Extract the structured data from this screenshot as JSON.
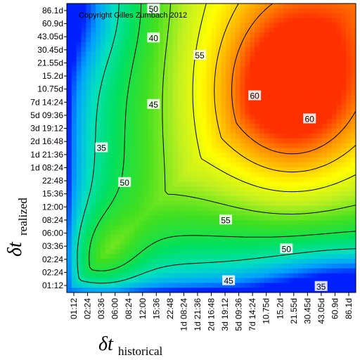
{
  "chart_data": {
    "type": "heatmap",
    "copyright": "Copyright Gilles Zumbach 2012",
    "xlabel": {
      "symbol": "δt",
      "subscript": "historical"
    },
    "ylabel": {
      "symbol": "δt",
      "subscript": "realized"
    },
    "x_ticks": [
      "01:12",
      "02:24",
      "03:36",
      "06:00",
      "08:24",
      "12:00",
      "15:36",
      "22:48",
      "1d 08:24",
      "1d 21:36",
      "2d 16:48",
      "3d 19:12",
      "5d 09:36",
      "7d 14:24",
      "10.75d",
      "15.2d",
      "21.55d",
      "30.45d",
      "43.05d",
      "60.9d",
      "86.1d"
    ],
    "y_ticks": [
      "01:12",
      "02:24",
      "02:24",
      "03:36",
      "06:00",
      "08:24",
      "12:00",
      "15:36",
      "22:48",
      "1d 08:24",
      "1d 21:36",
      "2d 16:48",
      "3d 19:12",
      "5d 09:36",
      "7d 14:24",
      "10.75d",
      "15.2d",
      "21.55d",
      "30.45d",
      "43.05d",
      "60.9d",
      "86.1d"
    ],
    "colorscale": [
      "#0020ff",
      "#00a0ff",
      "#00e0c0",
      "#00e060",
      "#40e020",
      "#c0f020",
      "#ffff00",
      "#ffc000",
      "#ff8000",
      "#ff3000"
    ],
    "value_range": [
      25,
      65
    ],
    "contour_labels": [
      {
        "text": "35",
        "x": 0.12,
        "y": 0.5
      },
      {
        "text": "35",
        "x": 0.88,
        "y": 0.98
      },
      {
        "text": "40",
        "x": 0.3,
        "y": 0.12
      },
      {
        "text": "45",
        "x": 0.3,
        "y": 0.35
      },
      {
        "text": "45",
        "x": 0.56,
        "y": 0.96
      },
      {
        "text": "50",
        "x": 0.2,
        "y": 0.62
      },
      {
        "text": "50",
        "x": 0.76,
        "y": 0.85
      },
      {
        "text": "50",
        "x": 0.3,
        "y": 0.02
      },
      {
        "text": "55",
        "x": 0.46,
        "y": 0.18
      },
      {
        "text": "55",
        "x": 0.55,
        "y": 0.75
      },
      {
        "text": "60",
        "x": 0.65,
        "y": 0.32
      },
      {
        "text": "60",
        "x": 0.84,
        "y": 0.4
      }
    ]
  }
}
